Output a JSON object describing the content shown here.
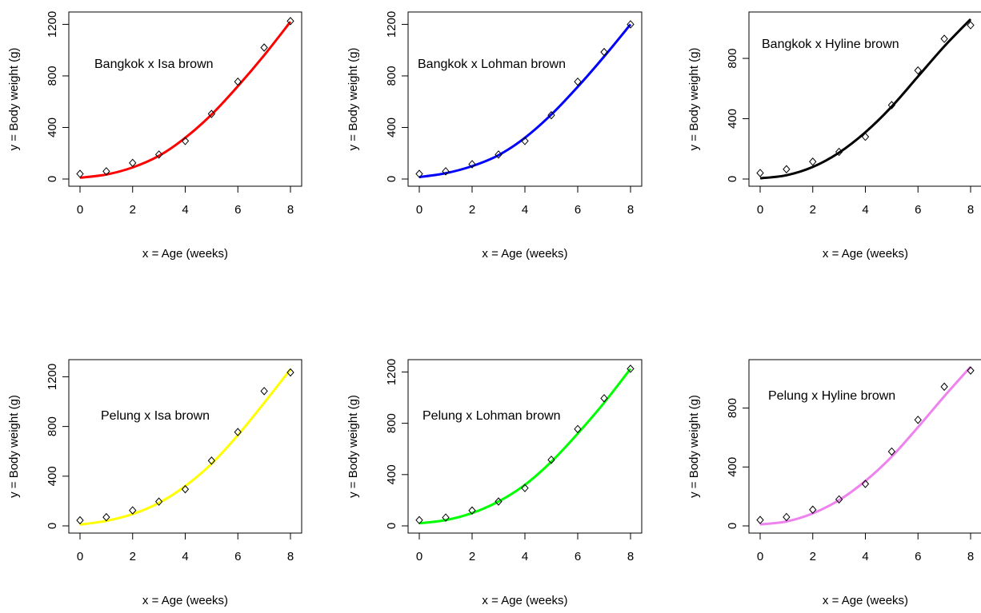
{
  "chart_data": [
    {
      "type": "scatter",
      "annotation": "Bangkok x Isa brown",
      "xlabel": "x = Age (weeks)",
      "ylabel": "y = Body weight (g)",
      "xlim": [
        0,
        8
      ],
      "ylim": [
        0,
        1240
      ],
      "xticks": [
        0,
        2,
        4,
        6,
        8
      ],
      "yticks": [
        0,
        400,
        800,
        1200
      ],
      "line_color": "#ff0000",
      "series": [
        {
          "x": [
            0,
            1,
            2,
            3,
            4,
            5,
            6,
            7,
            8
          ],
          "y": [
            40,
            60,
            125,
            190,
            295,
            505,
            755,
            1020,
            1225
          ]
        }
      ],
      "fit": {
        "x": [
          0,
          1,
          2,
          3,
          4,
          5,
          6,
          7,
          8
        ],
        "y": [
          10,
          35,
          90,
          180,
          320,
          500,
          720,
          960,
          1220
        ]
      }
    },
    {
      "type": "scatter",
      "annotation": "Bangkok x Lohman brown",
      "xlabel": "x = Age (weeks)",
      "ylabel": "y = Body weight (g)",
      "xlim": [
        0,
        8
      ],
      "ylim": [
        0,
        1240
      ],
      "xticks": [
        0,
        2,
        4,
        6,
        8
      ],
      "yticks": [
        0,
        400,
        800,
        1200
      ],
      "line_color": "#0000ff",
      "series": [
        {
          "x": [
            0,
            1,
            2,
            3,
            4,
            5,
            6,
            7,
            8
          ],
          "y": [
            40,
            60,
            115,
            190,
            295,
            495,
            755,
            985,
            1200
          ]
        }
      ],
      "fit": {
        "x": [
          0,
          1,
          2,
          3,
          4,
          5,
          6,
          7,
          8
        ],
        "y": [
          15,
          45,
          100,
          185,
          320,
          500,
          715,
          950,
          1200
        ]
      }
    },
    {
      "type": "scatter",
      "annotation": "Bangkok x Hyline brown",
      "xlabel": "x = Age (weeks)",
      "ylabel": "y = Body weight (g)",
      "xlim": [
        0,
        8
      ],
      "ylim": [
        0,
        1060
      ],
      "xticks": [
        0,
        2,
        4,
        6,
        8
      ],
      "yticks": [
        0,
        400,
        800
      ],
      "line_color": "#000000",
      "series": [
        {
          "x": [
            0,
            1,
            2,
            3,
            4,
            5,
            6,
            7,
            8
          ],
          "y": [
            40,
            65,
            115,
            180,
            280,
            490,
            720,
            930,
            1020
          ]
        }
      ],
      "fit": {
        "x": [
          0,
          1,
          2,
          3,
          4,
          5,
          6,
          7,
          8
        ],
        "y": [
          5,
          25,
          80,
          175,
          310,
          480,
          680,
          880,
          1060
        ]
      }
    },
    {
      "type": "scatter",
      "annotation": "Pelung x Isa brown",
      "xlabel": "x = Age (weeks)",
      "ylabel": "y = Body weight (g)",
      "xlim": [
        0,
        8
      ],
      "ylim": [
        0,
        1280
      ],
      "xticks": [
        0,
        2,
        4,
        6,
        8
      ],
      "yticks": [
        0,
        400,
        800,
        1200
      ],
      "line_color": "#ffff00",
      "series": [
        {
          "x": [
            0,
            1,
            2,
            3,
            4,
            5,
            6,
            7,
            8
          ],
          "y": [
            45,
            70,
            125,
            195,
            295,
            525,
            755,
            1085,
            1235
          ]
        }
      ],
      "fit": {
        "x": [
          0,
          1,
          2,
          3,
          4,
          5,
          6,
          7,
          8
        ],
        "y": [
          10,
          40,
          95,
          185,
          320,
          500,
          730,
          990,
          1260
        ]
      }
    },
    {
      "type": "scatter",
      "annotation": "Pelung x Lohman brown",
      "xlabel": "x = Age (weeks)",
      "ylabel": "y = Body weight (g)",
      "xlim": [
        0,
        8
      ],
      "ylim": [
        0,
        1240
      ],
      "xticks": [
        0,
        2,
        4,
        6,
        8
      ],
      "yticks": [
        0,
        400,
        800,
        1200
      ],
      "line_color": "#00ff00",
      "series": [
        {
          "x": [
            0,
            1,
            2,
            3,
            4,
            5,
            6,
            7,
            8
          ],
          "y": [
            45,
            65,
            120,
            190,
            295,
            515,
            755,
            995,
            1225
          ]
        }
      ],
      "fit": {
        "x": [
          0,
          1,
          2,
          3,
          4,
          5,
          6,
          7,
          8
        ],
        "y": [
          20,
          45,
          100,
          190,
          320,
          500,
          720,
          960,
          1225
        ]
      }
    },
    {
      "type": "scatter",
      "annotation": "Pelung x Hyline brown",
      "xlabel": "x = Age (weeks)",
      "ylabel": "y = Body weight (g)",
      "xlim": [
        0,
        8
      ],
      "ylim": [
        0,
        1080
      ],
      "xticks": [
        0,
        2,
        4,
        6,
        8
      ],
      "yticks": [
        0,
        400,
        800
      ],
      "line_color": "#ee82ee",
      "series": [
        {
          "x": [
            0,
            1,
            2,
            3,
            4,
            5,
            6,
            7,
            8
          ],
          "y": [
            40,
            60,
            110,
            180,
            285,
            505,
            720,
            945,
            1055
          ]
        }
      ],
      "fit": {
        "x": [
          0,
          1,
          2,
          3,
          4,
          5,
          6,
          7,
          8
        ],
        "y": [
          10,
          30,
          85,
          175,
          305,
          470,
          670,
          880,
          1080
        ]
      }
    }
  ]
}
